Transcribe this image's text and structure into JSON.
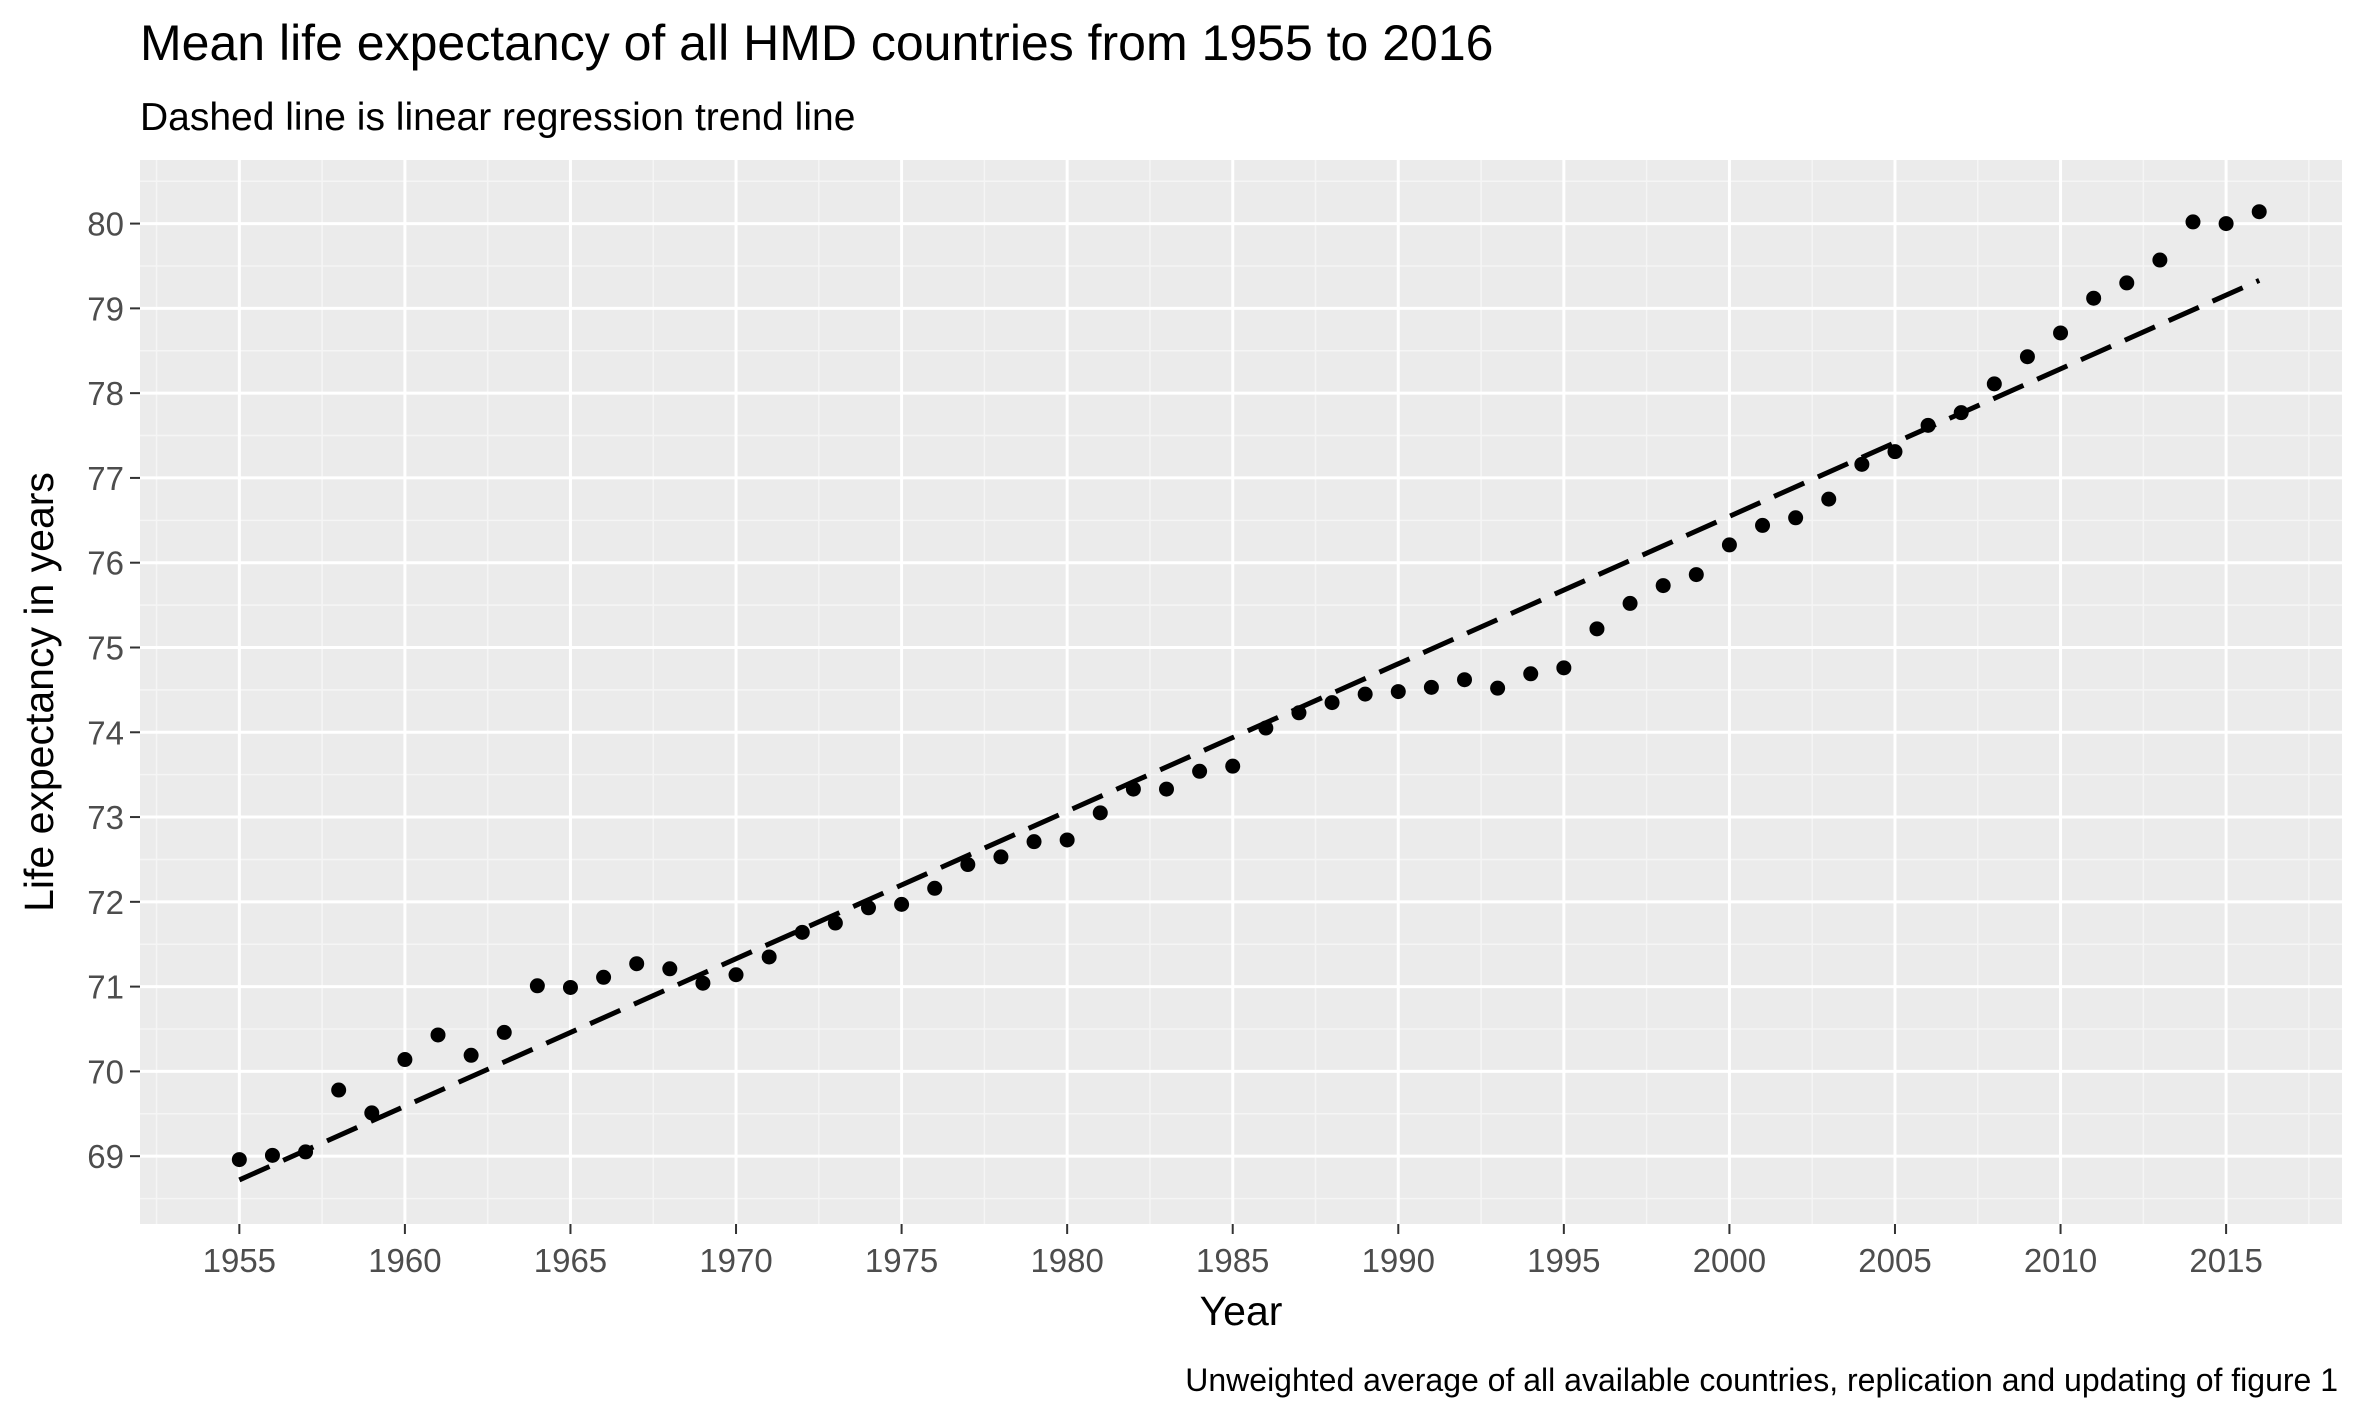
{
  "chart_data": {
    "type": "scatter",
    "title": "Mean life expectancy of all HMD countries from 1955 to 2016",
    "subtitle": "Dashed line is linear regression trend line",
    "caption": "Unweighted average of all available countries, replication and updating of figure 1",
    "xlabel": "Year",
    "ylabel": "Life expectancy in years",
    "xlim": [
      1952,
      2018.5
    ],
    "ylim": [
      68.2,
      80.75
    ],
    "x_ticks": [
      1955,
      1960,
      1965,
      1970,
      1975,
      1980,
      1985,
      1990,
      1995,
      2000,
      2005,
      2010,
      2015
    ],
    "y_ticks": [
      69,
      70,
      71,
      72,
      73,
      74,
      75,
      76,
      77,
      78,
      79,
      80
    ],
    "grid": true,
    "series": [
      {
        "x": [
          1955,
          1956,
          1957,
          1958,
          1959,
          1960,
          1961,
          1962,
          1963,
          1964,
          1965,
          1966,
          1967,
          1968,
          1969,
          1970,
          1971,
          1972,
          1973,
          1974,
          1975,
          1976,
          1977,
          1978,
          1979,
          1980,
          1981,
          1982,
          1983,
          1984,
          1985,
          1986,
          1987,
          1988,
          1989,
          1990,
          1991,
          1992,
          1993,
          1994,
          1995,
          1996,
          1997,
          1998,
          1999,
          2000,
          2001,
          2002,
          2003,
          2004,
          2005,
          2006,
          2007,
          2008,
          2009,
          2010,
          2011,
          2012,
          2013,
          2014,
          2015,
          2016
        ],
        "y": [
          68.96,
          69.01,
          69.05,
          69.78,
          69.51,
          70.14,
          70.43,
          70.19,
          70.46,
          71.01,
          70.99,
          71.11,
          71.27,
          71.21,
          71.04,
          71.14,
          71.35,
          71.64,
          71.75,
          71.93,
          71.97,
          72.16,
          72.44,
          72.53,
          72.71,
          72.73,
          73.05,
          73.33,
          73.33,
          73.54,
          73.6,
          74.05,
          74.23,
          74.35,
          74.45,
          74.48,
          74.53,
          74.62,
          74.52,
          74.69,
          74.76,
          75.22,
          75.52,
          75.73,
          75.86,
          76.21,
          76.44,
          76.53,
          76.75,
          77.16,
          77.31,
          77.62,
          77.77,
          78.11,
          78.43,
          78.71,
          79.12,
          79.3,
          79.57,
          80.02,
          80.0,
          80.14
        ]
      }
    ],
    "trend_line": {
      "style": "dashed",
      "x": [
        1955,
        2016
      ],
      "y": [
        68.72,
        79.33
      ]
    },
    "colors": {
      "panel_background": "#ebebeb",
      "grid_major": "#ffffff",
      "grid_minor": "#f5f5f5",
      "points": "#000000",
      "trend_line": "#000000",
      "tick_text": "#4d4d4d"
    }
  }
}
